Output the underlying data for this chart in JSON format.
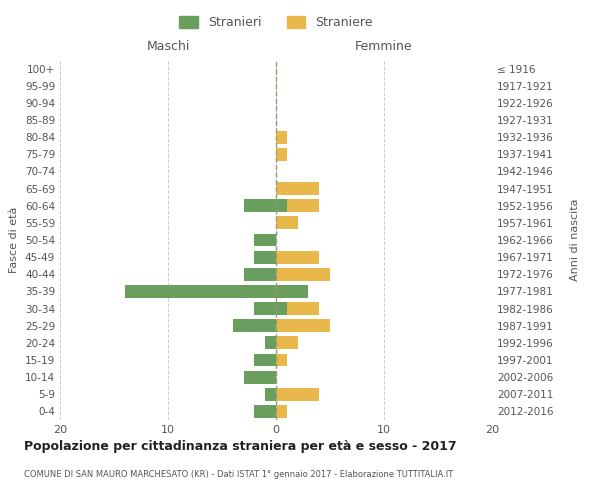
{
  "age_groups": [
    "100+",
    "95-99",
    "90-94",
    "85-89",
    "80-84",
    "75-79",
    "70-74",
    "65-69",
    "60-64",
    "55-59",
    "50-54",
    "45-49",
    "40-44",
    "35-39",
    "30-34",
    "25-29",
    "20-24",
    "15-19",
    "10-14",
    "5-9",
    "0-4"
  ],
  "birth_years": [
    "≤ 1916",
    "1917-1921",
    "1922-1926",
    "1927-1931",
    "1932-1936",
    "1937-1941",
    "1942-1946",
    "1947-1951",
    "1952-1956",
    "1957-1961",
    "1962-1966",
    "1967-1971",
    "1972-1976",
    "1977-1981",
    "1982-1986",
    "1987-1991",
    "1992-1996",
    "1997-2001",
    "2002-2006",
    "2007-2011",
    "2012-2016"
  ],
  "maschi_stranieri": [
    0,
    0,
    0,
    0,
    0,
    0,
    0,
    0,
    3,
    0,
    2,
    2,
    3,
    14,
    2,
    4,
    1,
    2,
    3,
    1,
    2
  ],
  "femmine_straniere": [
    0,
    0,
    0,
    0,
    1,
    1,
    0,
    4,
    4,
    2,
    0,
    4,
    5,
    3,
    4,
    5,
    2,
    1,
    0,
    4,
    1
  ],
  "femmine_stranieri": [
    0,
    0,
    0,
    0,
    0,
    0,
    0,
    0,
    1,
    0,
    0,
    0,
    0,
    3,
    1,
    0,
    0,
    0,
    0,
    0,
    0
  ],
  "color_stranieri": "#6a9e5e",
  "color_straniere": "#e8b84b",
  "title": "Popolazione per cittadinanza straniera per età e sesso - 2017",
  "subtitle": "COMUNE DI SAN MAURO MARCHESATO (KR) - Dati ISTAT 1° gennaio 2017 - Elaborazione TUTTITALIA.IT",
  "xlabel_left": "Maschi",
  "xlabel_right": "Femmine",
  "ylabel_left": "Fasce di età",
  "ylabel_right": "Anni di nascita",
  "xlim": 20,
  "bg_color": "#ffffff",
  "grid_color": "#cccccc"
}
